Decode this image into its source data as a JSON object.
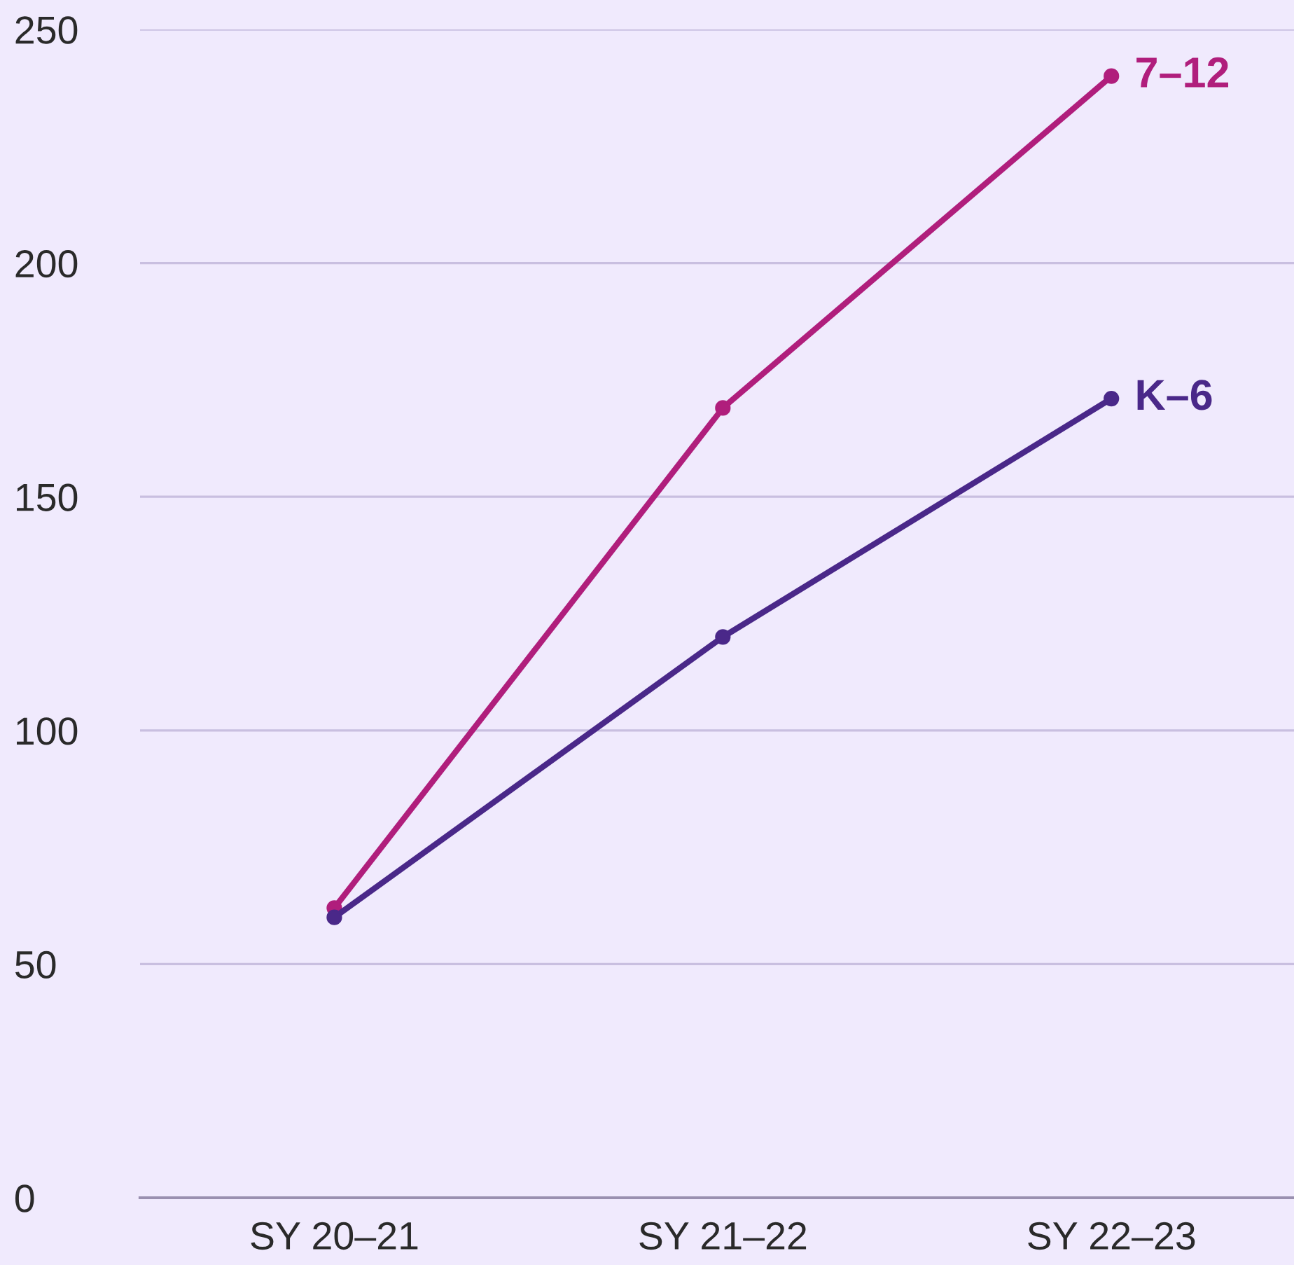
{
  "chart_data": {
    "type": "line",
    "categories": [
      "SY 20–21",
      "SY 21–22",
      "SY 22–23"
    ],
    "series": [
      {
        "name": "7–12",
        "color": "#b01e7c",
        "values": [
          62,
          169,
          240
        ]
      },
      {
        "name": "K–6",
        "color": "#4a2889",
        "values": [
          60,
          120,
          171
        ]
      }
    ],
    "ylim": [
      0,
      250
    ],
    "yticks": [
      0,
      50,
      100,
      150,
      200,
      250
    ],
    "grid": "y",
    "marker": "circle",
    "line_style": "solid",
    "legend": false
  }
}
